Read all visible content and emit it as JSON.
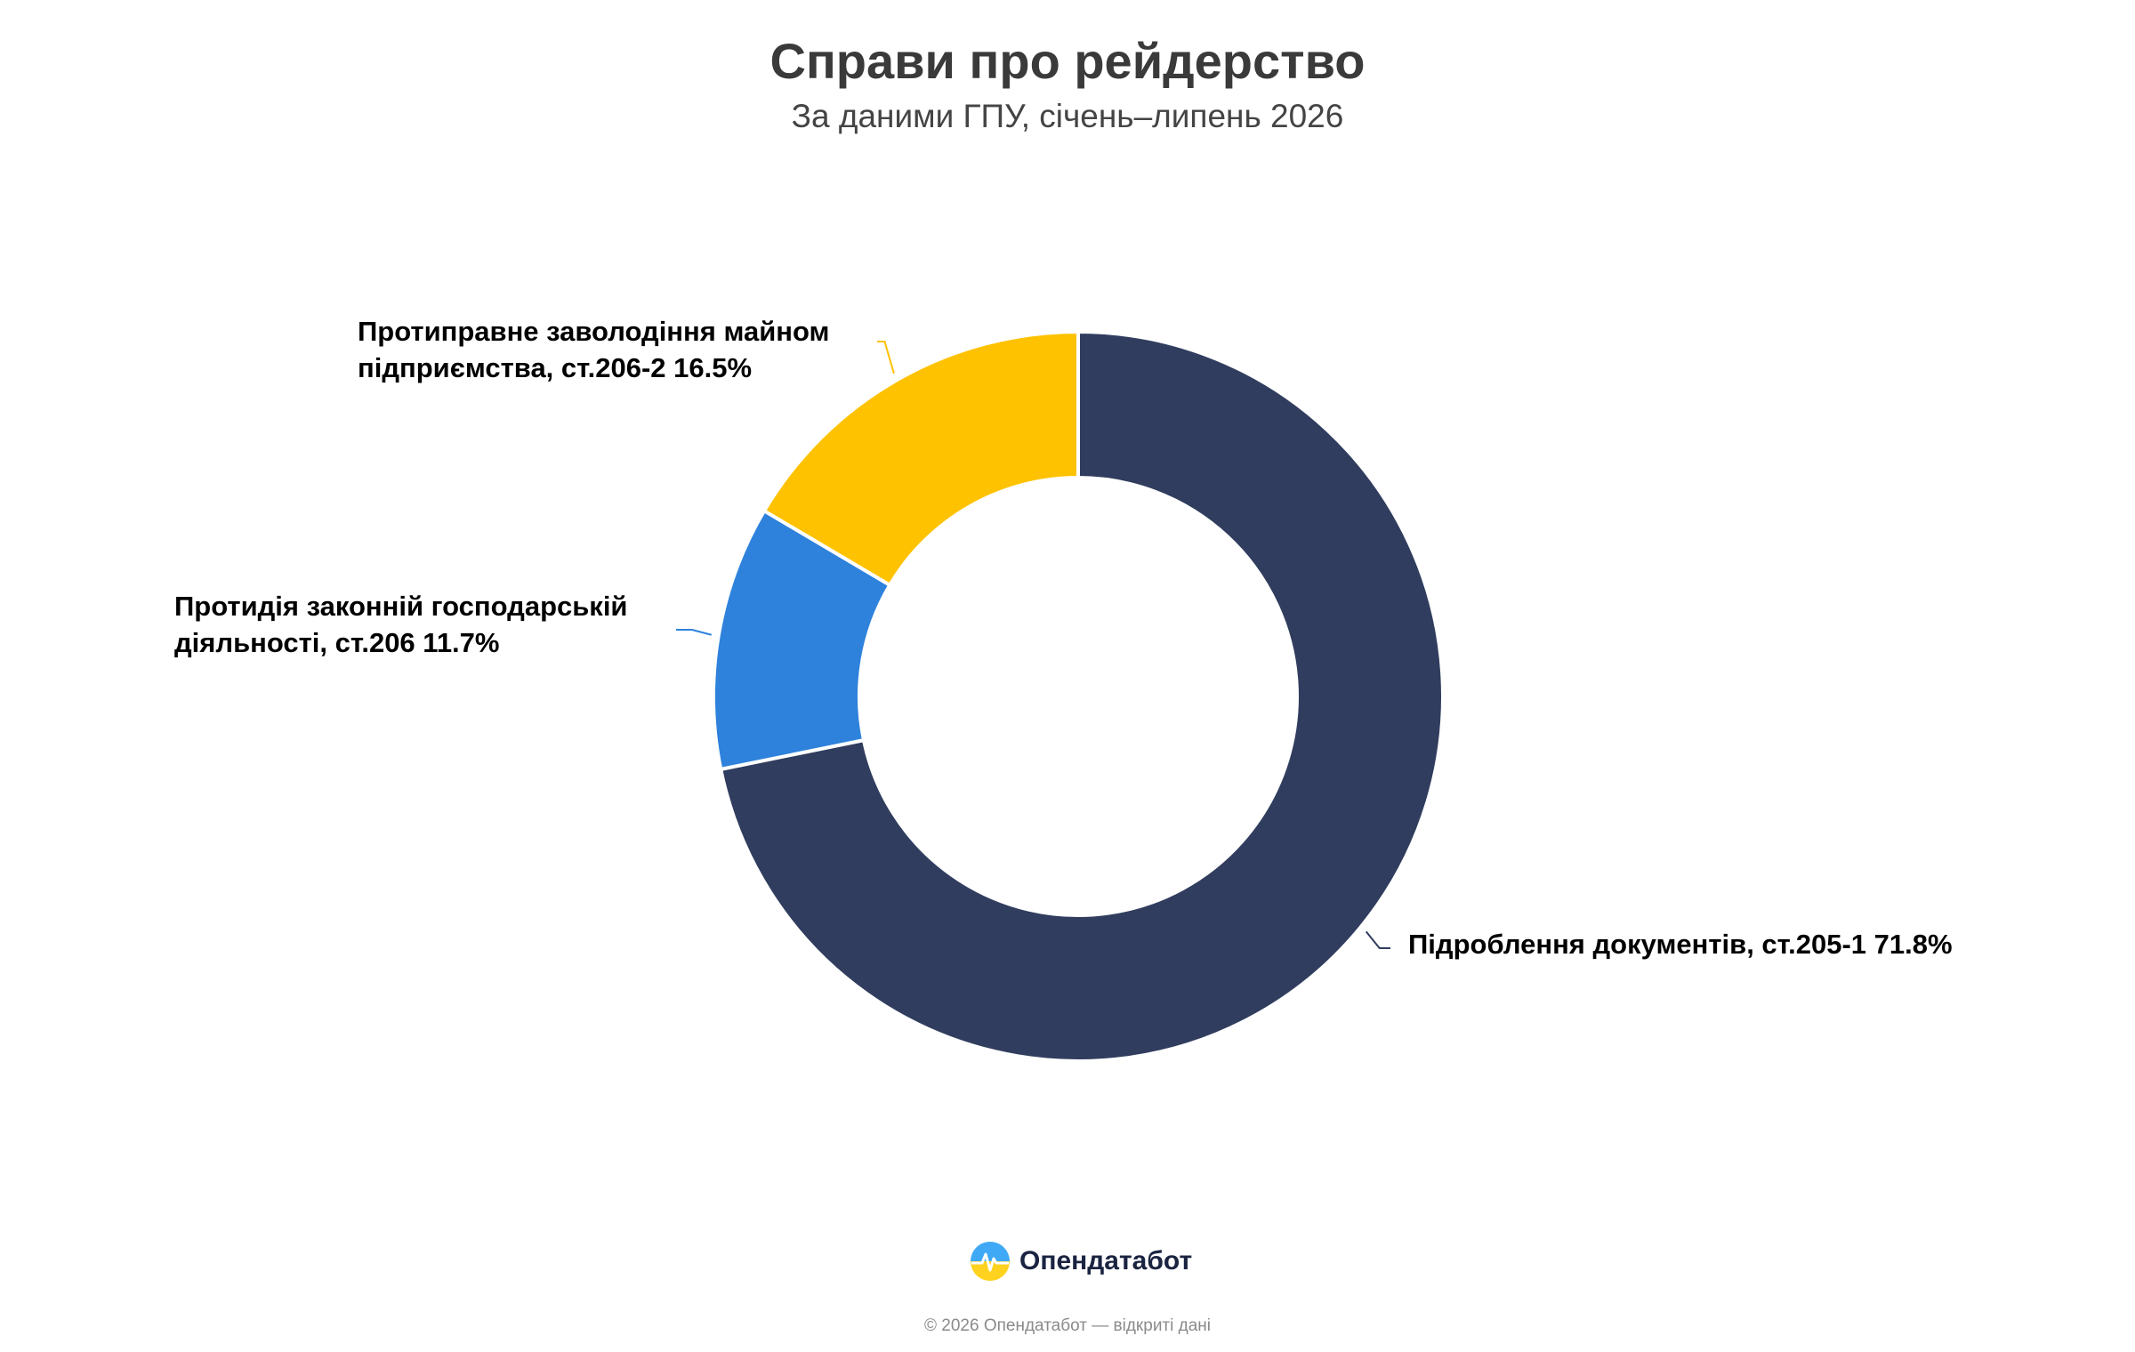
{
  "title": "Справи про рейдерство",
  "subtitle": "За даними ГПУ, січень–липень 2026",
  "chart_data": {
    "type": "pie",
    "donut": true,
    "title": "Справи про рейдерство",
    "subtitle": "За даними ГПУ, січень–липень 2026",
    "slices": [
      {
        "name": "Підроблення документів, ст.205-1",
        "value": 71.8,
        "label": "Підроблення документів, ст.205-1 71.8%",
        "color": "#303d5e"
      },
      {
        "name": "Протидія законній господарській діяльності, ст.206",
        "value": 11.7,
        "label_lines": [
          "Протидія законній господарській",
          "діяльності, ст.206 11.7%"
        ],
        "color": "#2e82dc"
      },
      {
        "name": "Протиправне заволодіння майном підприємства, ст.206-2",
        "value": 16.5,
        "label_lines": [
          "Протиправне заволодіння майном",
          "підприємства, ст.206-2 16.5%"
        ],
        "color": "#fec200"
      }
    ]
  },
  "brand": {
    "name": "Опендатабот",
    "icon": "opendatabot-logo-icon"
  },
  "copyright": "© 2026 Опендатабот — відкриті дані"
}
